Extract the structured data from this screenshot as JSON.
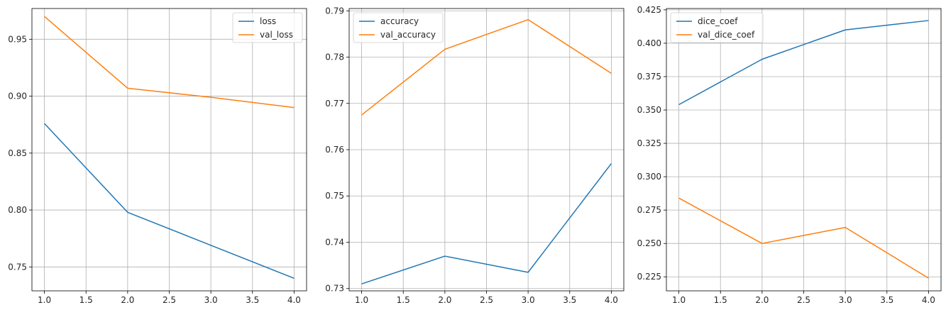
{
  "chart_data": [
    {
      "type": "line",
      "x": [
        1,
        2,
        3,
        4
      ],
      "series": [
        {
          "name": "loss",
          "values": [
            0.876,
            0.798,
            0.769,
            0.74
          ],
          "color": "#1f77b4"
        },
        {
          "name": "val_loss",
          "values": [
            0.97,
            0.907,
            0.899,
            0.89
          ],
          "color": "#ff7f0e"
        }
      ],
      "xlim": [
        0.85,
        4.15
      ],
      "ylim": [
        0.729,
        0.977
      ],
      "xticks": [
        1.0,
        1.5,
        2.0,
        2.5,
        3.0,
        3.5,
        4.0
      ],
      "xtick_labels": [
        "1.0",
        "1.5",
        "2.0",
        "2.5",
        "3.0",
        "3.5",
        "4.0"
      ],
      "yticks": [
        0.75,
        0.8,
        0.85,
        0.9,
        0.95
      ],
      "ytick_labels": [
        "0.75",
        "0.80",
        "0.85",
        "0.90",
        "0.95"
      ],
      "grid": true,
      "legend_position": "top-right"
    },
    {
      "type": "line",
      "x": [
        1,
        2,
        3,
        4
      ],
      "series": [
        {
          "name": "accuracy",
          "values": [
            0.731,
            0.737,
            0.7335,
            0.757
          ],
          "color": "#1f77b4"
        },
        {
          "name": "val_accuracy",
          "values": [
            0.7675,
            0.7817,
            0.7881,
            0.7765
          ],
          "color": "#ff7f0e"
        }
      ],
      "xlim": [
        0.85,
        4.15
      ],
      "ylim": [
        0.7295,
        0.7905
      ],
      "xticks": [
        1.0,
        1.5,
        2.0,
        2.5,
        3.0,
        3.5,
        4.0
      ],
      "xtick_labels": [
        "1.0",
        "1.5",
        "2.0",
        "2.5",
        "3.0",
        "3.5",
        "4.0"
      ],
      "yticks": [
        0.73,
        0.74,
        0.75,
        0.76,
        0.77,
        0.78,
        0.79
      ],
      "ytick_labels": [
        "0.73",
        "0.74",
        "0.75",
        "0.76",
        "0.77",
        "0.78",
        "0.79"
      ],
      "grid": true,
      "legend_position": "top-left"
    },
    {
      "type": "line",
      "x": [
        1,
        2,
        3,
        4
      ],
      "series": [
        {
          "name": "dice_coef",
          "values": [
            0.354,
            0.388,
            0.41,
            0.417
          ],
          "color": "#1f77b4"
        },
        {
          "name": "val_dice_coef",
          "values": [
            0.284,
            0.25,
            0.262,
            0.224
          ],
          "color": "#ff7f0e"
        }
      ],
      "xlim": [
        0.85,
        4.15
      ],
      "ylim": [
        0.2145,
        0.426
      ],
      "xticks": [
        1.0,
        1.5,
        2.0,
        2.5,
        3.0,
        3.5,
        4.0
      ],
      "xtick_labels": [
        "1.0",
        "1.5",
        "2.0",
        "2.5",
        "3.0",
        "3.5",
        "4.0"
      ],
      "yticks": [
        0.225,
        0.25,
        0.275,
        0.3,
        0.325,
        0.35,
        0.375,
        0.4,
        0.425
      ],
      "ytick_labels": [
        "0.225",
        "0.250",
        "0.275",
        "0.300",
        "0.325",
        "0.350",
        "0.375",
        "0.400",
        "0.425"
      ],
      "grid": true,
      "legend_position": "top-left"
    }
  ]
}
